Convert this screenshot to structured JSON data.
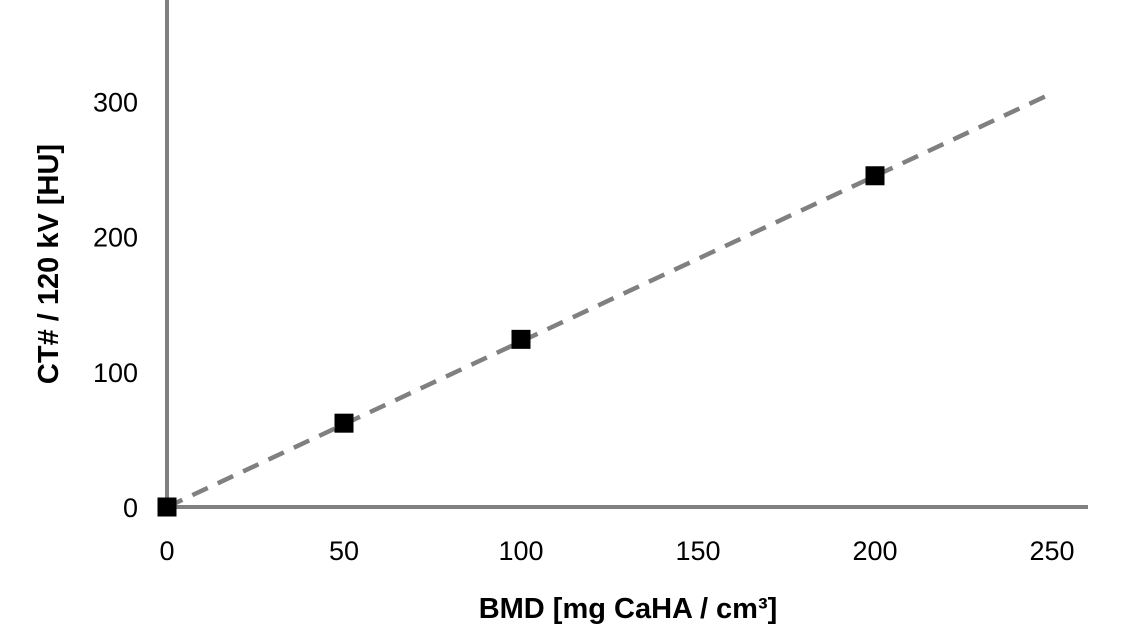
{
  "chart_data": {
    "type": "scatter",
    "title": "",
    "xlabel": "BMD [mg CaHA / cm³]",
    "ylabel": "CT# / 120 kV [HU]",
    "xlim": [
      0,
      250
    ],
    "ylim": [
      0,
      375
    ],
    "xticks": [
      "0",
      "50",
      "100",
      "150",
      "200",
      "250"
    ],
    "yticks": [
      "0",
      "100",
      "200",
      "300"
    ],
    "grid": false,
    "legend": "none",
    "series": [
      {
        "points": [
          {
            "x": 0,
            "y": 0
          },
          {
            "x": 50,
            "y": 62
          },
          {
            "x": 100,
            "y": 124
          },
          {
            "x": 200,
            "y": 245
          }
        ]
      }
    ],
    "trendline": {
      "style": "dashed",
      "points": [
        {
          "x": 0,
          "y": 0
        },
        {
          "x": 250,
          "y": 306
        }
      ]
    },
    "colors": {
      "axis": "#808080",
      "marker": "#000000",
      "trendline": "#808080"
    }
  }
}
